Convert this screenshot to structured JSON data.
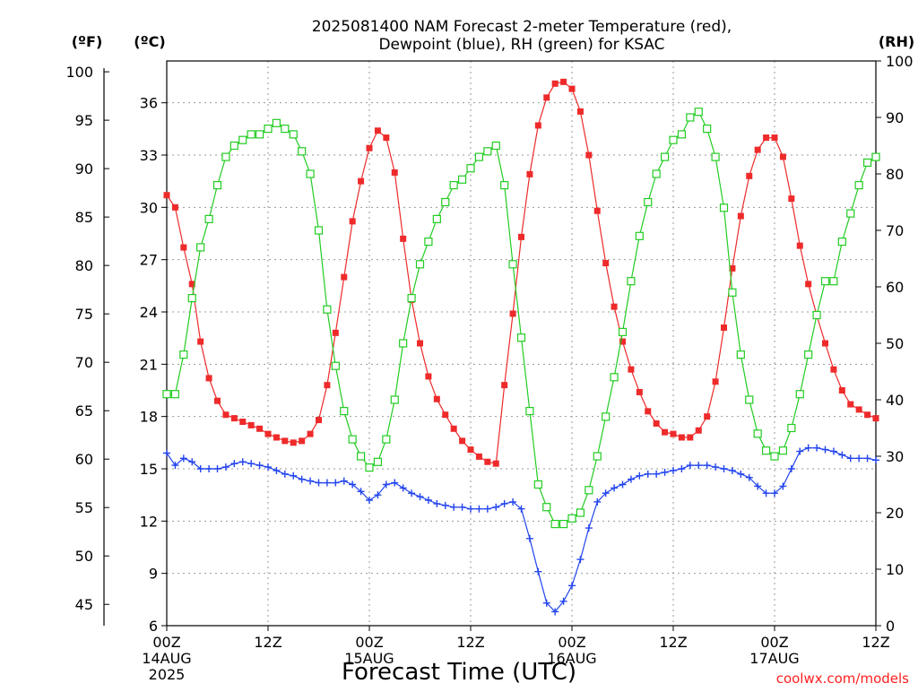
{
  "chart_data": {
    "type": "line",
    "title_line1": "2025081400 NAM Forecast 2-meter Temperature (red),",
    "title_line2": "Dewpoint (blue), RH (green) for KSAC",
    "xlabel": "Forecast Time (UTC)",
    "credit": "coolwx.com/models",
    "units": {
      "fahrenheit": "(ºF)",
      "celsius": "(ºC)",
      "rh": "(RH)"
    },
    "x_ticks": [
      {
        "h": 0,
        "lines": [
          "00Z",
          "14AUG",
          "2025"
        ]
      },
      {
        "h": 12,
        "lines": [
          "12Z"
        ]
      },
      {
        "h": 24,
        "lines": [
          "00Z",
          "15AUG"
        ]
      },
      {
        "h": 36,
        "lines": [
          "12Z"
        ]
      },
      {
        "h": 48,
        "lines": [
          "00Z",
          "16AUG"
        ]
      },
      {
        "h": 60,
        "lines": [
          "12Z"
        ]
      },
      {
        "h": 72,
        "lines": [
          "00Z",
          "17AUG"
        ]
      },
      {
        "h": 84,
        "lines": [
          "12Z"
        ]
      }
    ],
    "xlim_hours": [
      0,
      84
    ],
    "ylim_celsius": [
      6,
      38.4
    ],
    "ylim_rh": [
      0,
      100
    ],
    "celsius_ticks": [
      "6",
      "9",
      "12",
      "15",
      "18",
      "21",
      "24",
      "27",
      "30",
      "33",
      "36"
    ],
    "fahrenheit_ticks": [
      "45",
      "50",
      "55",
      "60",
      "65",
      "70",
      "75",
      "80",
      "85",
      "90",
      "95",
      "100"
    ],
    "rh_ticks": [
      "0",
      "10",
      "20",
      "30",
      "40",
      "50",
      "60",
      "70",
      "80",
      "90",
      "100"
    ],
    "grid": true,
    "colors": {
      "temperature": "#ee2a2a",
      "dewpoint": "#2244ee",
      "rh": "#22cc22",
      "credit": "#ff2020"
    },
    "series": [
      {
        "key": "temperature",
        "unit": "C",
        "points": [
          [
            0,
            30.7
          ],
          [
            1,
            30.0
          ],
          [
            2,
            27.7
          ],
          [
            3,
            25.6
          ],
          [
            4,
            22.3
          ],
          [
            5,
            20.2
          ],
          [
            6,
            18.9
          ],
          [
            7,
            18.1
          ],
          [
            8,
            17.9
          ],
          [
            9,
            17.7
          ],
          [
            10,
            17.5
          ],
          [
            11,
            17.3
          ],
          [
            12,
            17.0
          ],
          [
            13,
            16.8
          ],
          [
            14,
            16.6
          ],
          [
            15,
            16.5
          ],
          [
            16,
            16.6
          ],
          [
            17,
            17.0
          ],
          [
            18,
            17.8
          ],
          [
            19,
            19.8
          ],
          [
            20,
            22.8
          ],
          [
            21,
            26.0
          ],
          [
            22,
            29.2
          ],
          [
            23,
            31.5
          ],
          [
            24,
            33.4
          ],
          [
            25,
            34.4
          ],
          [
            26,
            34.0
          ],
          [
            27,
            32.0
          ],
          [
            28,
            28.2
          ],
          [
            29,
            24.7
          ],
          [
            30,
            22.2
          ],
          [
            31,
            20.3
          ],
          [
            32,
            19.0
          ],
          [
            33,
            18.1
          ],
          [
            34,
            17.3
          ],
          [
            35,
            16.6
          ],
          [
            36,
            16.1
          ],
          [
            37,
            15.7
          ],
          [
            38,
            15.4
          ],
          [
            39,
            15.3
          ],
          [
            40,
            19.8
          ],
          [
            41,
            23.9
          ],
          [
            42,
            28.3
          ],
          [
            43,
            31.9
          ],
          [
            44,
            34.7
          ],
          [
            45,
            36.3
          ],
          [
            46,
            37.1
          ],
          [
            47,
            37.2
          ],
          [
            48,
            36.8
          ],
          [
            49,
            35.5
          ],
          [
            50,
            33.0
          ],
          [
            51,
            29.8
          ],
          [
            52,
            26.8
          ],
          [
            53,
            24.3
          ],
          [
            54,
            22.3
          ],
          [
            55,
            20.7
          ],
          [
            56,
            19.4
          ],
          [
            57,
            18.3
          ],
          [
            58,
            17.6
          ],
          [
            59,
            17.1
          ],
          [
            60,
            17.0
          ],
          [
            61,
            16.8
          ],
          [
            62,
            16.8
          ],
          [
            63,
            17.2
          ],
          [
            64,
            18.0
          ],
          [
            65,
            20.0
          ],
          [
            66,
            23.1
          ],
          [
            67,
            26.5
          ],
          [
            68,
            29.5
          ],
          [
            69,
            31.8
          ],
          [
            70,
            33.3
          ],
          [
            71,
            34.0
          ],
          [
            72,
            34.0
          ],
          [
            73,
            32.9
          ],
          [
            74,
            30.5
          ],
          [
            75,
            27.8
          ],
          [
            76,
            25.6
          ],
          [
            77,
            23.8
          ],
          [
            78,
            22.2
          ],
          [
            79,
            20.7
          ],
          [
            80,
            19.5
          ],
          [
            81,
            18.7
          ],
          [
            82,
            18.4
          ],
          [
            83,
            18.1
          ],
          [
            84,
            17.9
          ]
        ]
      },
      {
        "key": "dewpoint",
        "unit": "C",
        "points": [
          [
            0,
            15.9
          ],
          [
            1,
            15.2
          ],
          [
            2,
            15.6
          ],
          [
            3,
            15.4
          ],
          [
            4,
            15.0
          ],
          [
            5,
            15.0
          ],
          [
            6,
            15.0
          ],
          [
            7,
            15.1
          ],
          [
            8,
            15.3
          ],
          [
            9,
            15.4
          ],
          [
            10,
            15.3
          ],
          [
            11,
            15.2
          ],
          [
            12,
            15.1
          ],
          [
            13,
            14.9
          ],
          [
            14,
            14.7
          ],
          [
            15,
            14.6
          ],
          [
            16,
            14.4
          ],
          [
            17,
            14.3
          ],
          [
            18,
            14.2
          ],
          [
            19,
            14.2
          ],
          [
            20,
            14.2
          ],
          [
            21,
            14.3
          ],
          [
            22,
            14.1
          ],
          [
            23,
            13.7
          ],
          [
            24,
            13.2
          ],
          [
            25,
            13.5
          ],
          [
            26,
            14.1
          ],
          [
            27,
            14.2
          ],
          [
            28,
            13.9
          ],
          [
            29,
            13.6
          ],
          [
            30,
            13.4
          ],
          [
            31,
            13.2
          ],
          [
            32,
            13.0
          ],
          [
            33,
            12.9
          ],
          [
            34,
            12.8
          ],
          [
            35,
            12.8
          ],
          [
            36,
            12.7
          ],
          [
            37,
            12.7
          ],
          [
            38,
            12.7
          ],
          [
            39,
            12.8
          ],
          [
            40,
            13.0
          ],
          [
            41,
            13.1
          ],
          [
            42,
            12.7
          ],
          [
            43,
            11.0
          ],
          [
            44,
            9.1
          ],
          [
            45,
            7.3
          ],
          [
            46,
            6.8
          ],
          [
            47,
            7.4
          ],
          [
            48,
            8.3
          ],
          [
            49,
            9.8
          ],
          [
            50,
            11.6
          ],
          [
            51,
            13.1
          ],
          [
            52,
            13.6
          ],
          [
            53,
            13.9
          ],
          [
            54,
            14.1
          ],
          [
            55,
            14.4
          ],
          [
            56,
            14.6
          ],
          [
            57,
            14.7
          ],
          [
            58,
            14.7
          ],
          [
            59,
            14.8
          ],
          [
            60,
            14.9
          ],
          [
            61,
            15.0
          ],
          [
            62,
            15.2
          ],
          [
            63,
            15.2
          ],
          [
            64,
            15.2
          ],
          [
            65,
            15.1
          ],
          [
            66,
            15.0
          ],
          [
            67,
            14.9
          ],
          [
            68,
            14.7
          ],
          [
            69,
            14.5
          ],
          [
            70,
            14.0
          ],
          [
            71,
            13.6
          ],
          [
            72,
            13.6
          ],
          [
            73,
            14.0
          ],
          [
            74,
            15.0
          ],
          [
            75,
            16.0
          ],
          [
            76,
            16.2
          ],
          [
            77,
            16.2
          ],
          [
            78,
            16.1
          ],
          [
            79,
            16.0
          ],
          [
            80,
            15.8
          ],
          [
            81,
            15.6
          ],
          [
            82,
            15.6
          ],
          [
            83,
            15.6
          ],
          [
            84,
            15.5
          ]
        ]
      },
      {
        "key": "rh",
        "unit": "%",
        "points": [
          [
            0,
            41
          ],
          [
            1,
            41
          ],
          [
            2,
            48
          ],
          [
            3,
            58
          ],
          [
            4,
            67
          ],
          [
            5,
            72
          ],
          [
            6,
            78
          ],
          [
            7,
            83
          ],
          [
            8,
            85
          ],
          [
            9,
            86
          ],
          [
            10,
            87
          ],
          [
            11,
            87
          ],
          [
            12,
            88
          ],
          [
            13,
            89
          ],
          [
            14,
            88
          ],
          [
            15,
            87
          ],
          [
            16,
            84
          ],
          [
            17,
            80
          ],
          [
            18,
            70
          ],
          [
            19,
            56
          ],
          [
            20,
            46
          ],
          [
            21,
            38
          ],
          [
            22,
            33
          ],
          [
            23,
            30
          ],
          [
            24,
            28
          ],
          [
            25,
            29
          ],
          [
            26,
            33
          ],
          [
            27,
            40
          ],
          [
            28,
            50
          ],
          [
            29,
            58
          ],
          [
            30,
            64
          ],
          [
            31,
            68
          ],
          [
            32,
            72
          ],
          [
            33,
            75
          ],
          [
            34,
            78
          ],
          [
            35,
            79
          ],
          [
            36,
            81
          ],
          [
            37,
            83
          ],
          [
            38,
            84
          ],
          [
            39,
            85
          ],
          [
            40,
            78
          ],
          [
            41,
            64
          ],
          [
            42,
            51
          ],
          [
            43,
            38
          ],
          [
            44,
            25
          ],
          [
            45,
            21
          ],
          [
            46,
            18
          ],
          [
            47,
            18
          ],
          [
            48,
            19
          ],
          [
            49,
            20
          ],
          [
            50,
            24
          ],
          [
            51,
            30
          ],
          [
            52,
            37
          ],
          [
            53,
            44
          ],
          [
            54,
            52
          ],
          [
            55,
            61
          ],
          [
            56,
            69
          ],
          [
            57,
            75
          ],
          [
            58,
            80
          ],
          [
            59,
            83
          ],
          [
            60,
            86
          ],
          [
            61,
            87
          ],
          [
            62,
            90
          ],
          [
            63,
            91
          ],
          [
            64,
            88
          ],
          [
            65,
            83
          ],
          [
            66,
            74
          ],
          [
            67,
            59
          ],
          [
            68,
            48
          ],
          [
            69,
            40
          ],
          [
            70,
            34
          ],
          [
            71,
            31
          ],
          [
            72,
            30
          ],
          [
            73,
            31
          ],
          [
            74,
            35
          ],
          [
            75,
            41
          ],
          [
            76,
            48
          ],
          [
            77,
            55
          ],
          [
            78,
            61
          ],
          [
            79,
            61
          ],
          [
            80,
            68
          ],
          [
            81,
            73
          ],
          [
            82,
            78
          ],
          [
            83,
            82
          ],
          [
            84,
            83
          ]
        ]
      }
    ]
  }
}
